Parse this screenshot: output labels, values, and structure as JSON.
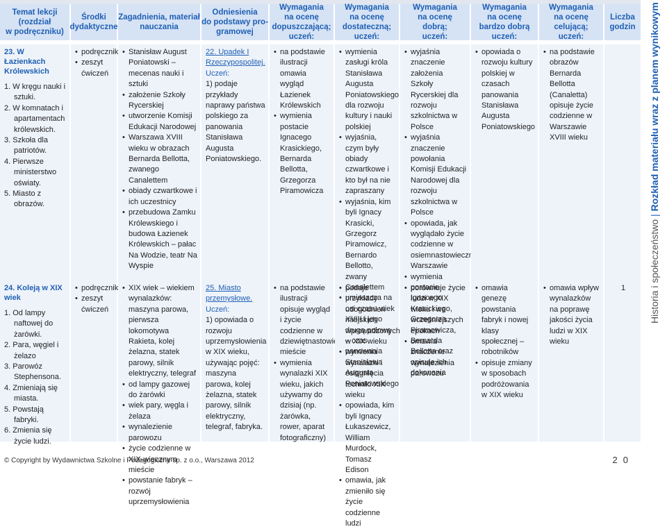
{
  "header": {
    "c1": "Temat lekcji\n(rozdział\nw podręczniku)",
    "c2": "Środki\ndydaktyczne",
    "c3": "Zagadnienia, materiał\nnauczania",
    "c4": "Odniesienia\ndo podstawy pro-\ngramowej",
    "c5": "Wymagania\nna ocenę\ndopuszczającą;\nuczeń:",
    "c6": "Wymagania\nna ocenę\ndostateczną;\nuczeń:",
    "c7": "Wymagania\nna ocenę\ndobrą;\nuczeń:",
    "c8": "Wymagania\nna ocenę\nbardzo dobrą\nuczeń:",
    "c9": "Wymagania\nna ocenę\ncelującą;\nuczeń:",
    "c10": "Liczba\ngodzin"
  },
  "row1": {
    "topic": "23. W Łazienkach Królewskich",
    "subtopics": [
      "1. W kręgu nauki i sztuki.",
      "2. W komnatach i apartamentach królewskich.",
      "3. Szkoła dla patriotów.",
      "4. Pierwsze ministerstwo oświaty.",
      "5. Miasto z obrazów."
    ],
    "aids": [
      "podręcznik",
      "zeszyt ćwiczeń"
    ],
    "content": [
      "Stanisław August Poniatowski – mecenas nauki i sztuki",
      "założenie Szkoły Rycerskiej",
      "utworzenie Komisji Edukacji Narodowej",
      "Warszawa XVIII wieku w obrazach Bernarda Bellotta, zwanego Canalettem",
      "obiady czwartkowe i ich uczestnicy",
      "przebudowa Zamku Królewskiego i budowa Łazienek Królewskich – pałac Na Wodzie, teatr Na Wyspie"
    ],
    "ref_title": "22. Upadek I Rzeczypospolitej.",
    "ref_label": "Uczeń:",
    "ref_text": "1) podaje przykłady naprawy państwa polskiego za panowania Stanisława Augusta Poniatowskiego.",
    "req_pass": [
      "na podstawie ilustracji omawia wygląd Łazienek Królewskich",
      "wymienia postacie Ignacego Krasickiego, Bernarda Bellotta, Grzegorza Piramowicza"
    ],
    "req_sat": [
      "wymienia zasługi króla Stanisława Augusta Poniatowskiego dla rozwoju kultury i nauki polskiej",
      "wyjaśnia, czym były obiady czwartkowe i kto był na nie zapraszany",
      "wyjaśnia, kim byli Ignacy Krasicki, Grzegorz Piramowicz, Bernardo Bellotto, zwany Canalettem",
      "umieszcza na osi czasu wiek XVIII i jego drugą połowę – czas panowania Stanisława Augusta Poniatowskiego"
    ],
    "req_good": [
      "wyjaśnia znaczenie założenia Szkoły Rycerskiej dla rozwoju szkolnictwa w Polsce",
      "wyjaśnia znaczenie powołania Komisji Edukacji Narodowej dla rozwoju szkolnictwa w Polsce",
      "opowiada, jak wyglądało życie codzienne w osiemnastowiecznej Warszawie",
      "wymienia postacie Ignacego Krasickiego, Grzegorza Piramowicza, Bernarda Bellotta oraz opisuje ich dokonania"
    ],
    "req_vgood": [
      "opowiada o rozwoju kultury polskiej w czasach panowania Stanisława Augusta Poniatowskiego"
    ],
    "req_excel": [
      "na podstawie obrazów Bernarda Bellotta (Canaletta) opisuje życie codzienne w Warszawie XVIII wieku"
    ],
    "hours": ""
  },
  "row2": {
    "topic": "24. Koleją w XIX wiek",
    "subtopics": [
      "1. Od lampy naftowej do żarówki.",
      "2. Para, węgiel i żelazo",
      "3. Parowóz Stephensona.",
      "4. Zmieniają się miasta.",
      "5. Powstają fabryki.",
      "6. Zmienia się życie ludzi."
    ],
    "aids": [
      "podręcznik",
      "zeszyt ćwiczeń"
    ],
    "content": [
      "XIX wiek – wiekiem wynalazków: maszyna parowa, pierwsza lokomotywa Rakieta, kolej żelazna, statek parowy, silnik elektryczny, telegraf",
      "od lampy gazowej do żarówki",
      "wiek pary, węgla i żelaza",
      "wynalezienie parowozu",
      "życie codzienne w XIX-wiecznym mieście",
      "powstanie fabryk – rozwój uprzemysłowienia"
    ],
    "ref_title": "25. Miasto przemysłowe.",
    "ref_label": "Uczeń:",
    "ref_text": "1) opowiada o rozwoju uprzemysłowienia w XIX wieku, używając pojęć: maszyna parowa, kolej żelazna, statek parowy, silnik elektryczny, telegraf, fabryka.",
    "req_pass": [
      "na podstawie ilustracji opisuje wygląd i życie codzienne w dziewiętnastowiecznym mieście",
      "wymienia wynalazki XIX wieku, jakich używamy do dzisiaj (np. żarówka, rower, aparat fotograficzny)"
    ],
    "req_sat": [
      "podaje przykłady udogodnień miejskich wprowadzonych w XIX wieku",
      "wymienia wynalazki i osiągnięcia techniki XIX wieku",
      "opowiada, kim byli Ignacy Łukaszewicz, William Murdock, Tomasz Edison",
      "omawia, jak zmieniło się życie codzienne ludzi"
    ],
    "req_good": [
      "porównuje życie ludzi w XIX wieku i we wcześniejszych epokach",
      "omawia znaczenie wynalezienia parowozu"
    ],
    "req_vgood": [
      "omawia genezę powstania fabryk i nowej klasy społecznej – robotników",
      "opisuje zmiany w sposobach podróżowania w XIX wieku"
    ],
    "req_excel": [
      "omawia wpływ wynalazków na poprawę jakości życia ludzi w XIX wieku"
    ],
    "hours": "1"
  },
  "sidebar": {
    "main": "Rozkład materiału wraz z planem wynikowym",
    "sub": "Historia i społeczeństwo"
  },
  "footer": {
    "copyright": "© Copyright by Wydawnictwa Szkolne i Pedagogiczne sp. z o.o., Warszawa 2012",
    "page": "20"
  }
}
